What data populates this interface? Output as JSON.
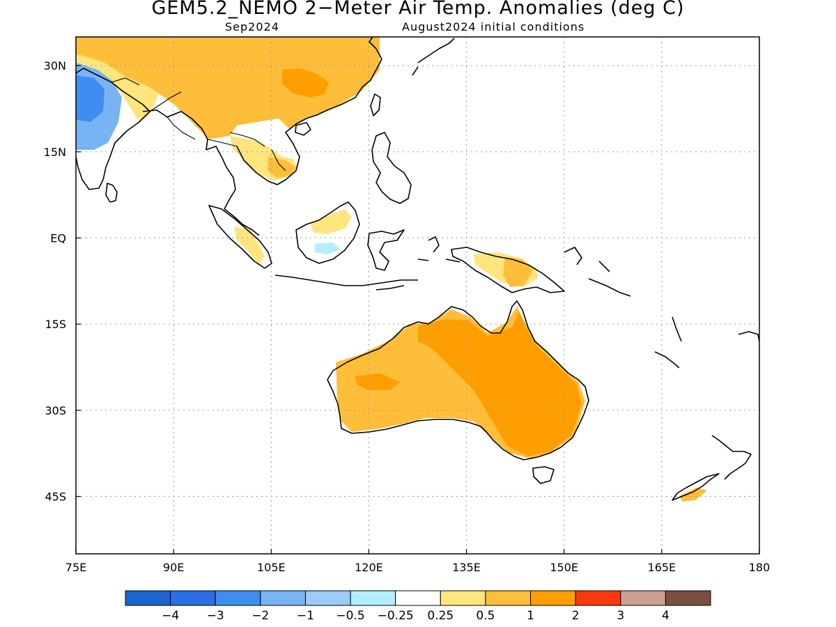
{
  "title": "GEM5.2_NEMO 2−Meter Air Temp. Anomalies (deg C)",
  "subtitle_left": "Sep2024",
  "subtitle_right": "August2024 initial conditions",
  "map": {
    "lon_range": [
      75,
      180
    ],
    "lat_range": [
      -55,
      35
    ],
    "x_ticks": [
      {
        "lon": 75,
        "label": "75E"
      },
      {
        "lon": 90,
        "label": "90E"
      },
      {
        "lon": 105,
        "label": "105E"
      },
      {
        "lon": 120,
        "label": "120E"
      },
      {
        "lon": 135,
        "label": "135E"
      },
      {
        "lon": 150,
        "label": "150E"
      },
      {
        "lon": 165,
        "label": "165E"
      },
      {
        "lon": 180,
        "label": "180"
      }
    ],
    "y_ticks": [
      {
        "lat": 30,
        "label": "30N"
      },
      {
        "lat": 15,
        "label": "15N"
      },
      {
        "lat": 0,
        "label": "EQ"
      },
      {
        "lat": -15,
        "label": "15S"
      },
      {
        "lat": -30,
        "label": "30S"
      },
      {
        "lat": -45,
        "label": "45S"
      }
    ],
    "grid": true
  },
  "colorbar": {
    "colors": [
      "#1c64cf",
      "#2a6ee8",
      "#3f8df0",
      "#78b3f4",
      "#9dcbf8",
      "#b1eef9",
      "#ffffff",
      "#ffe57d",
      "#ffbe3a",
      "#ff9e00",
      "#fa3a0c",
      "#c9a092",
      "#7a4f3f"
    ],
    "labels": [
      "−4",
      "−3",
      "−2",
      "−1",
      "−0.5",
      "−0.25",
      "0.25",
      "0.5",
      "1",
      "2",
      "3",
      "4"
    ]
  }
}
